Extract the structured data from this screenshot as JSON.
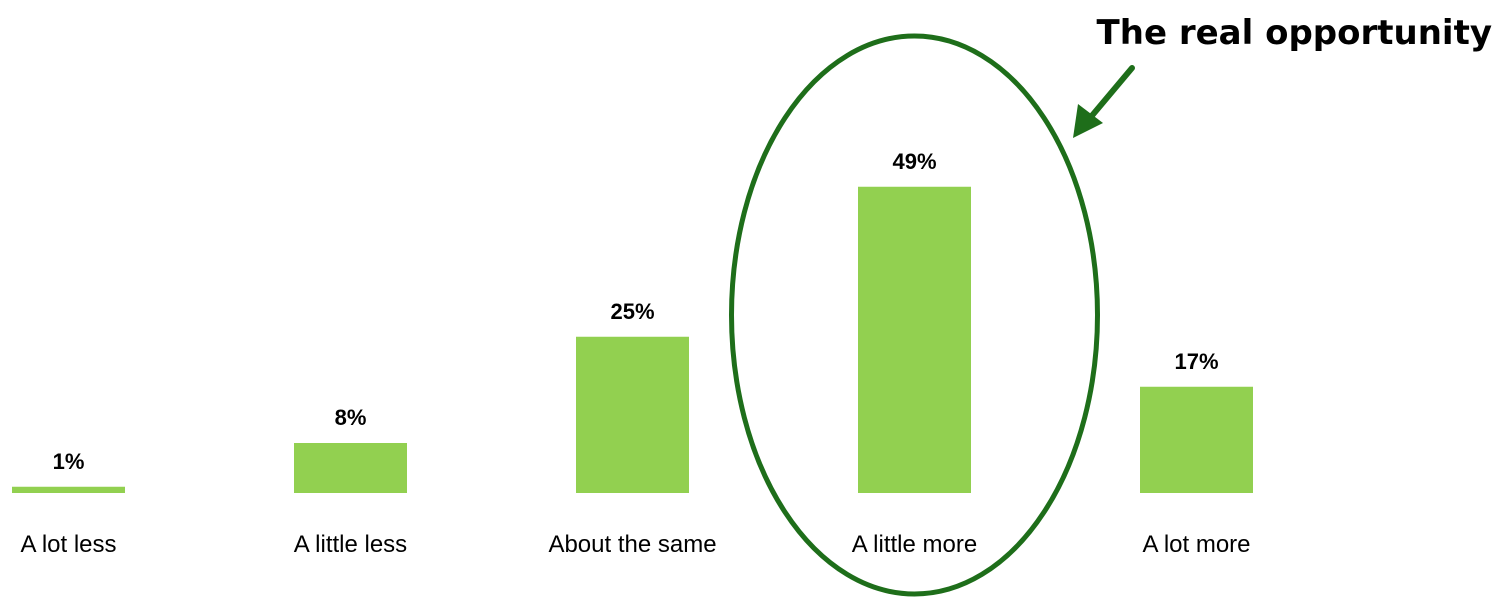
{
  "chart_data": {
    "type": "bar",
    "categories": [
      "A lot less",
      "A little less",
      "About the same",
      "A little more",
      "A lot more"
    ],
    "values": [
      1,
      8,
      25,
      49,
      17
    ],
    "value_labels": [
      "1%",
      "8%",
      "25%",
      "49%",
      "17%"
    ],
    "title": "",
    "xlabel": "",
    "ylabel": "",
    "ylim": [
      0,
      50
    ],
    "grid": false,
    "legend": "none",
    "highlight": {
      "category": "A little more",
      "label": "The real opportunity"
    }
  },
  "colors": {
    "bar": "#92d050",
    "highlight_outline": "#1e6e1a",
    "arrow": "#1e6e1a"
  }
}
